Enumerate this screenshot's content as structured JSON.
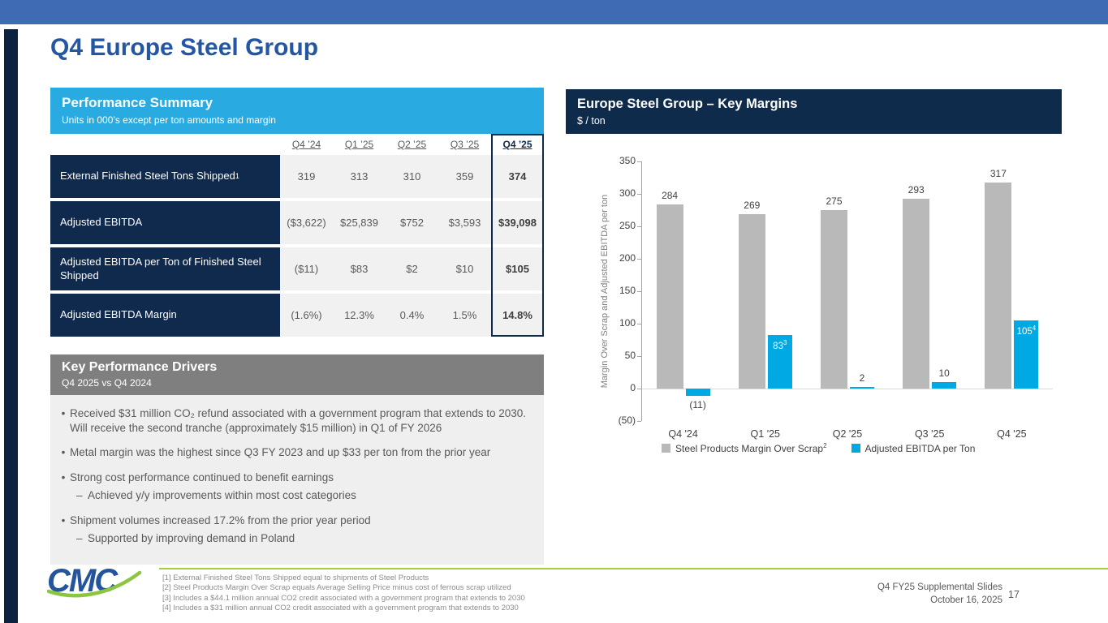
{
  "slide": {
    "title": "Q4 Europe Steel Group",
    "accent_blue": "#3E6BB4",
    "navy": "#0F2B4C",
    "light_blue": "#29AAE1"
  },
  "performance_summary": {
    "title": "Performance Summary",
    "subtitle": "Units in 000’s except per ton amounts and margin",
    "columns": [
      "Q4 ’24",
      "Q1 ’25",
      "Q2 ’25",
      "Q3 ’25",
      "Q4 ’25"
    ],
    "rows": [
      {
        "label": "External Finished Steel Tons Shipped",
        "sup": "1",
        "values": [
          "319",
          "313",
          "310",
          "359",
          "374"
        ]
      },
      {
        "label": "Adjusted EBITDA",
        "sup": "",
        "values": [
          "($3,622)",
          "$25,839",
          "$752",
          "$3,593",
          "$39,098"
        ]
      },
      {
        "label": "Adjusted EBITDA per Ton of Finished Steel Shipped",
        "sup": "",
        "values": [
          "($11)",
          "$83",
          "$2",
          "$10",
          "$105"
        ]
      },
      {
        "label": "Adjusted EBITDA Margin",
        "sup": "",
        "values": [
          "(1.6%)",
          "12.3%",
          "0.4%",
          "1.5%",
          "14.8%"
        ]
      }
    ]
  },
  "key_drivers": {
    "title": "Key Performance Drivers",
    "subtitle": "Q4 2025 vs Q4 2024",
    "bullets": [
      {
        "text": "Received $31 million CO₂ refund associated with a government program that extends to 2030.  Will receive the second tranche (approximately $15 million) in Q1 of FY 2026",
        "sub": []
      },
      {
        "text": "Metal margin was the highest since Q3 FY 2023 and up $33 per ton from the prior year",
        "sub": []
      },
      {
        "text": "Strong cost performance continued to benefit earnings",
        "sub": [
          "Achieved y/y improvements within most cost categories"
        ]
      },
      {
        "text": "Shipment volumes increased 17.2% from the prior year period",
        "sub": [
          "Supported by improving demand in Poland"
        ]
      }
    ]
  },
  "chart": {
    "title": "Europe Steel Group – Key Margins",
    "subtitle": "$ / ton",
    "ylabel": "Margin Over Scrap and Adjusted EBITDA per ton"
  },
  "chart_data": {
    "type": "bar",
    "categories": [
      "Q4 '24",
      "Q1 '25",
      "Q2 '25",
      "Q3 '25",
      "Q4 '25"
    ],
    "series": [
      {
        "name": "Steel Products Margin Over Scrap",
        "sup": "2",
        "color": "#B9B9BA",
        "values": [
          284,
          269,
          275,
          293,
          317
        ],
        "labels": [
          "284",
          "269",
          "275",
          "293",
          "317"
        ],
        "label_sups": [
          "",
          "",
          "",
          "",
          ""
        ]
      },
      {
        "name": "Adjusted EBITDA per Ton",
        "sup": "",
        "color": "#00A8E4",
        "values": [
          -11,
          83,
          2,
          10,
          105
        ],
        "labels": [
          "(11)",
          "83",
          "2",
          "10",
          "105"
        ],
        "label_sups": [
          "",
          "3",
          "",
          "",
          "4"
        ]
      }
    ],
    "ylim": [
      -50,
      350
    ],
    "ytick_step": 50,
    "yticks": [
      "350",
      "300",
      "250",
      "200",
      "150",
      "100",
      "50",
      "0",
      "(50)"
    ],
    "legend_position": "bottom",
    "grid": false
  },
  "footnotes": [
    "[1] External Finished Steel Tons Shipped equal to shipments of Steel Products",
    "[2] Steel Products Margin Over Scrap equals Average Selling Price minus cost of ferrous scrap utilized",
    "[3] Includes a $44.1 million annual CO2 credit associated with a government program that extends to 2030",
    "[4] Includes a $31 million annual CO2 credit associated with a government program that extends to 2030"
  ],
  "footer": {
    "logo_text": "CMC",
    "deck_title": "Q4 FY25 Supplemental Slides",
    "date": "October 16, 2025",
    "page_number": "17"
  }
}
